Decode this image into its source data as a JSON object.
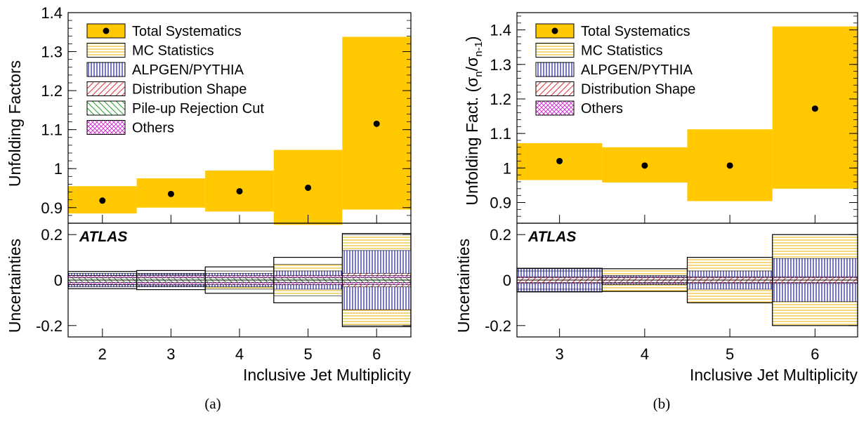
{
  "chart_data": [
    {
      "id": "a",
      "type": "step-band",
      "caption": "(a)",
      "xlabel": "Inclusive Jet Multiplicity",
      "xlim": [
        1.5,
        6.5
      ],
      "xticks": [
        "2",
        "3",
        "4",
        "5",
        "6"
      ],
      "brand_label": "ATLAS",
      "top": {
        "ylabel": "Unfolding Factors",
        "ylim": [
          0.86,
          1.4
        ],
        "yticks": [
          "0.9",
          "1",
          "1.1",
          "1.2",
          "1.3",
          "1.4"
        ],
        "central": [
          {
            "x": 2,
            "y": 0.918,
            "low": 0.885,
            "high": 0.955
          },
          {
            "x": 3,
            "y": 0.935,
            "low": 0.9,
            "high": 0.975
          },
          {
            "x": 4,
            "y": 0.942,
            "low": 0.89,
            "high": 0.995
          },
          {
            "x": 5,
            "y": 0.951,
            "low": 0.856,
            "high": 1.048
          },
          {
            "x": 6,
            "y": 1.115,
            "low": 0.895,
            "high": 1.338
          }
        ]
      },
      "legend": [
        {
          "label": "Total Systematics",
          "style": "solid-marker"
        },
        {
          "label": "MC Statistics",
          "style": "hlines"
        },
        {
          "label": "ALPGEN/PYTHIA",
          "style": "vlines"
        },
        {
          "label": "Distribution Shape",
          "style": "diag"
        },
        {
          "label": "Pile-up Rejection Cut",
          "style": "diag-green"
        },
        {
          "label": "Others",
          "style": "cross"
        }
      ],
      "bottom": {
        "ylabel": "Uncertainties",
        "ylim": [
          -0.25,
          0.25
        ],
        "yticks": [
          "-0.2",
          "0",
          "0.2"
        ],
        "series": [
          {
            "name": "Total Systematics",
            "values": [
              0.038,
              0.042,
              0.058,
              0.1,
              0.205
            ]
          },
          {
            "name": "MC Statistics",
            "values": [
              0.02,
              0.025,
              0.04,
              0.07,
              0.2
            ]
          },
          {
            "name": "ALPGEN/PYTHIA",
            "values": [
              0.03,
              0.03,
              0.03,
              0.04,
              0.13
            ]
          },
          {
            "name": "Distribution Shape",
            "values": [
              0.01,
              0.01,
              0.01,
              0.01,
              0.03
            ]
          },
          {
            "name": "Pile-up Rejection Cut",
            "values": [
              0.01,
              0.01,
              0.01,
              0.01,
              0.01
            ]
          },
          {
            "name": "Others",
            "values": [
              0.02,
              0.02,
              0.02,
              0.02,
              0.02
            ]
          }
        ]
      }
    },
    {
      "id": "b",
      "type": "step-band",
      "caption": "(b)",
      "xlabel": "Inclusive Jet Multiplicity",
      "xlim": [
        2.5,
        6.5
      ],
      "xticks": [
        "3",
        "4",
        "5",
        "6"
      ],
      "brand_label": "ATLAS",
      "top": {
        "ylabel": "Unfolding Fact. (σn/σn-1)",
        "ylabel_parts": {
          "main": "Unfolding Fact. (σ",
          "sub1": "n",
          "mid": "/σ",
          "sub2": "n-1",
          "end": ")"
        },
        "ylim": [
          0.84,
          1.45
        ],
        "yticks": [
          "0.9",
          "1",
          "1.1",
          "1.2",
          "1.3",
          "1.4"
        ],
        "central": [
          {
            "x": 3,
            "y": 1.02,
            "low": 0.965,
            "high": 1.072
          },
          {
            "x": 4,
            "y": 1.007,
            "low": 0.958,
            "high": 1.06
          },
          {
            "x": 5,
            "y": 1.007,
            "low": 0.904,
            "high": 1.112
          },
          {
            "x": 6,
            "y": 1.172,
            "low": 0.94,
            "high": 1.41
          }
        ]
      },
      "legend": [
        {
          "label": "Total Systematics",
          "style": "solid-marker"
        },
        {
          "label": "MC Statistics",
          "style": "hlines"
        },
        {
          "label": "ALPGEN/PYTHIA",
          "style": "vlines"
        },
        {
          "label": "Distribution Shape",
          "style": "diag"
        },
        {
          "label": "Others",
          "style": "cross"
        }
      ],
      "bottom": {
        "ylabel": "Uncertainties",
        "ylim": [
          -0.25,
          0.25
        ],
        "yticks": [
          "-0.2",
          "0",
          "0.2"
        ],
        "series": [
          {
            "name": "Total Systematics",
            "values": [
              0.052,
              0.05,
              0.1,
              0.2
            ]
          },
          {
            "name": "MC Statistics",
            "values": [
              0.04,
              0.05,
              0.1,
              0.2
            ]
          },
          {
            "name": "ALPGEN/PYTHIA",
            "values": [
              0.05,
              0.02,
              0.04,
              0.095
            ]
          },
          {
            "name": "Distribution Shape",
            "values": [
              0.01,
              0.01,
              0.01,
              0.01
            ]
          },
          {
            "name": "Others",
            "values": [
              0.015,
              0.015,
              0.015,
              0.015
            ]
          }
        ]
      }
    }
  ],
  "colors": {
    "total_fill": "#FFC800",
    "hlines": "#E8B000",
    "vlines": "#2B2BC8",
    "diag": "#E03030",
    "diag_green": "#2A9A2A",
    "cross": "#D020D0"
  }
}
